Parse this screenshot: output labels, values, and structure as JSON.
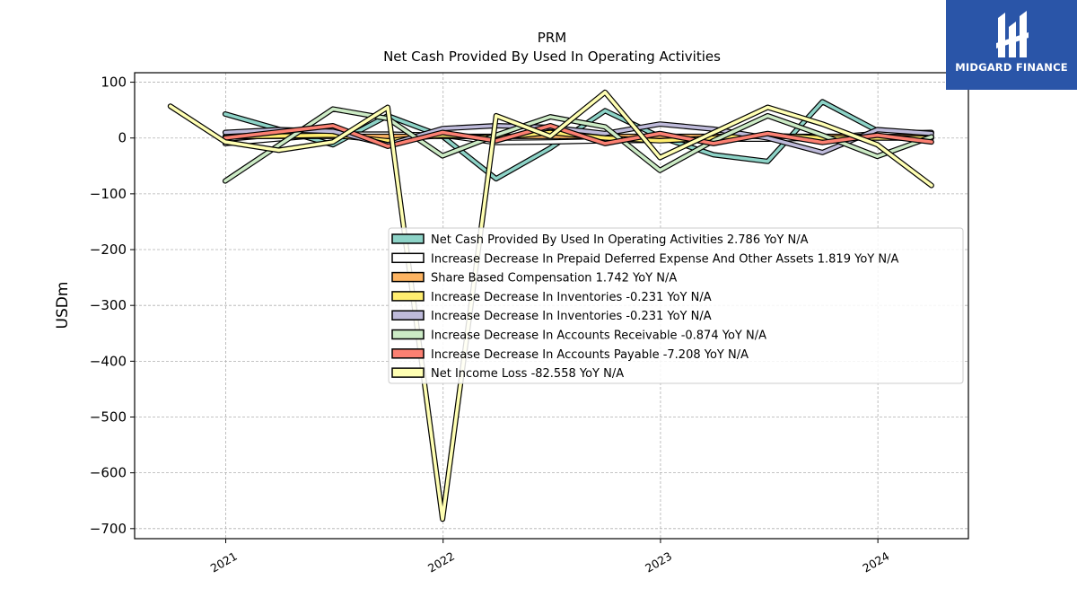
{
  "logo": {
    "text": "MIDGARD FINANCE",
    "background": "#2a55a8"
  },
  "chart_data": {
    "type": "line",
    "title": "PRM",
    "subtitle": "Net Cash Provided By Used In Operating Activities",
    "ylabel": "USDm",
    "xlabel": "",
    "xlim": [
      "2020-08-01",
      "2024-06-01"
    ],
    "ylim": [
      -718,
      117
    ],
    "yticks": [
      100,
      0,
      -100,
      -200,
      -300,
      -400,
      -500,
      -600,
      -700
    ],
    "ytick_labels": [
      "100",
      "0",
      "−100",
      "−200",
      "−300",
      "−400",
      "−500",
      "−600",
      "−700"
    ],
    "xticks": [
      "2021-01-01",
      "2022-01-01",
      "2023-01-01",
      "2024-01-01"
    ],
    "xtick_labels": [
      "2021",
      "2022",
      "2023",
      "2024"
    ],
    "grid": true,
    "legend_position": "center-right",
    "series": [
      {
        "name": "Net Cash Provided By Used In Operating Activities  2.786 YoY N/A",
        "color": "#8dd3c7",
        "points": [
          [
            "2020-12-31",
            43
          ],
          [
            "2021-06-30",
            -12
          ],
          [
            "2021-09-30",
            40
          ],
          [
            "2021-12-31",
            3
          ],
          [
            "2022-03-31",
            -73
          ],
          [
            "2022-06-30",
            -18
          ],
          [
            "2022-09-30",
            49
          ],
          [
            "2022-12-31",
            2
          ],
          [
            "2023-03-31",
            -30
          ],
          [
            "2023-06-30",
            -42
          ],
          [
            "2023-09-30",
            65
          ],
          [
            "2023-12-31",
            13
          ],
          [
            "2024-03-31",
            3
          ]
        ]
      },
      {
        "name": "Increase Decrease In Prepaid Deferred Expense And Other Assets  1.819 YoY N/A",
        "color": "#ffffff",
        "points": [
          [
            "2020-12-31",
            -10
          ],
          [
            "2021-06-30",
            7
          ],
          [
            "2021-09-30",
            7
          ],
          [
            "2021-12-31",
            5
          ],
          [
            "2022-03-31",
            -8
          ],
          [
            "2022-06-30",
            -7
          ],
          [
            "2022-09-30",
            -5
          ],
          [
            "2022-12-31",
            -4
          ],
          [
            "2023-03-31",
            -2
          ],
          [
            "2023-06-30",
            -2
          ],
          [
            "2023-09-30",
            0
          ],
          [
            "2023-12-31",
            8
          ],
          [
            "2024-03-31",
            10
          ]
        ]
      },
      {
        "name": "Share Based Compensation  1.742 YoY N/A",
        "color": "#fdb462",
        "points": [
          [
            "2020-12-31",
            3
          ],
          [
            "2021-06-30",
            3
          ],
          [
            "2021-09-30",
            3
          ],
          [
            "2021-12-31",
            3
          ],
          [
            "2022-03-31",
            3
          ],
          [
            "2022-06-30",
            3
          ],
          [
            "2022-09-30",
            3
          ],
          [
            "2022-12-31",
            3
          ],
          [
            "2023-03-31",
            3
          ],
          [
            "2023-06-30",
            3
          ],
          [
            "2023-09-30",
            3
          ],
          [
            "2023-12-31",
            3
          ],
          [
            "2024-03-31",
            2
          ]
        ]
      },
      {
        "name": "Increase Decrease In Inventories  -0.231 YoY N/A",
        "color": "#ffed6f",
        "points": [
          [
            "2020-12-31",
            2
          ],
          [
            "2021-06-30",
            5
          ],
          [
            "2021-09-30",
            -5
          ],
          [
            "2021-12-31",
            5
          ],
          [
            "2022-03-31",
            0
          ],
          [
            "2022-06-30",
            10
          ],
          [
            "2022-09-30",
            0
          ],
          [
            "2022-12-31",
            -5
          ],
          [
            "2023-03-31",
            0
          ],
          [
            "2023-06-30",
            5
          ],
          [
            "2023-09-30",
            0
          ],
          [
            "2023-12-31",
            0
          ],
          [
            "2024-03-31",
            0
          ]
        ]
      },
      {
        "name": "Increase Decrease In Inventories  -0.231 YoY N/A",
        "color": "#bebada",
        "points": [
          [
            "2020-12-31",
            10
          ],
          [
            "2021-03-31",
            15
          ],
          [
            "2021-06-30",
            12
          ],
          [
            "2021-09-30",
            -12
          ],
          [
            "2021-12-31",
            17
          ],
          [
            "2022-03-31",
            22
          ],
          [
            "2022-06-30",
            19
          ],
          [
            "2022-09-30",
            8
          ],
          [
            "2022-12-31",
            25
          ],
          [
            "2023-03-31",
            16
          ],
          [
            "2023-06-30",
            0
          ],
          [
            "2023-09-30",
            -26
          ],
          [
            "2023-12-31",
            15
          ],
          [
            "2024-03-31",
            8
          ]
        ]
      },
      {
        "name": "Increase Decrease In Accounts Receivable  -0.874 YoY N/A",
        "color": "#ccebc5",
        "points": [
          [
            "2020-12-31",
            -77
          ],
          [
            "2021-06-30",
            52
          ],
          [
            "2021-09-30",
            35
          ],
          [
            "2021-12-31",
            -32
          ],
          [
            "2022-03-31",
            5
          ],
          [
            "2022-06-30",
            38
          ],
          [
            "2022-09-30",
            20
          ],
          [
            "2022-12-31",
            -58
          ],
          [
            "2023-03-31",
            -5
          ],
          [
            "2023-06-30",
            40
          ],
          [
            "2023-09-30",
            5
          ],
          [
            "2023-12-31",
            -33
          ],
          [
            "2024-03-31",
            2
          ]
        ]
      },
      {
        "name": "Increase Decrease In Accounts Payable  -7.208 YoY N/A",
        "color": "#fb8072",
        "points": [
          [
            "2020-12-31",
            0
          ],
          [
            "2021-06-30",
            22
          ],
          [
            "2021-09-30",
            -15
          ],
          [
            "2021-12-31",
            10
          ],
          [
            "2022-03-31",
            -5
          ],
          [
            "2022-06-30",
            22
          ],
          [
            "2022-09-30",
            -10
          ],
          [
            "2022-12-31",
            8
          ],
          [
            "2023-03-31",
            -10
          ],
          [
            "2023-06-30",
            8
          ],
          [
            "2023-09-30",
            -8
          ],
          [
            "2023-12-31",
            5
          ],
          [
            "2024-03-31",
            -7
          ]
        ]
      },
      {
        "name": "Net Income Loss  -82.558 YoY N/A",
        "color": "#ffffb3",
        "points": [
          [
            "2020-09-30",
            57
          ],
          [
            "2020-12-31",
            -7
          ],
          [
            "2021-03-31",
            -22
          ],
          [
            "2021-06-30",
            -7
          ],
          [
            "2021-09-30",
            55
          ],
          [
            "2021-12-31",
            -683
          ],
          [
            "2022-03-31",
            40
          ],
          [
            "2022-06-30",
            3
          ],
          [
            "2022-09-30",
            82
          ],
          [
            "2022-12-31",
            -35
          ],
          [
            "2023-06-30",
            55
          ],
          [
            "2023-09-30",
            25
          ],
          [
            "2023-12-31",
            -12
          ],
          [
            "2024-03-31",
            -85
          ]
        ]
      }
    ]
  }
}
